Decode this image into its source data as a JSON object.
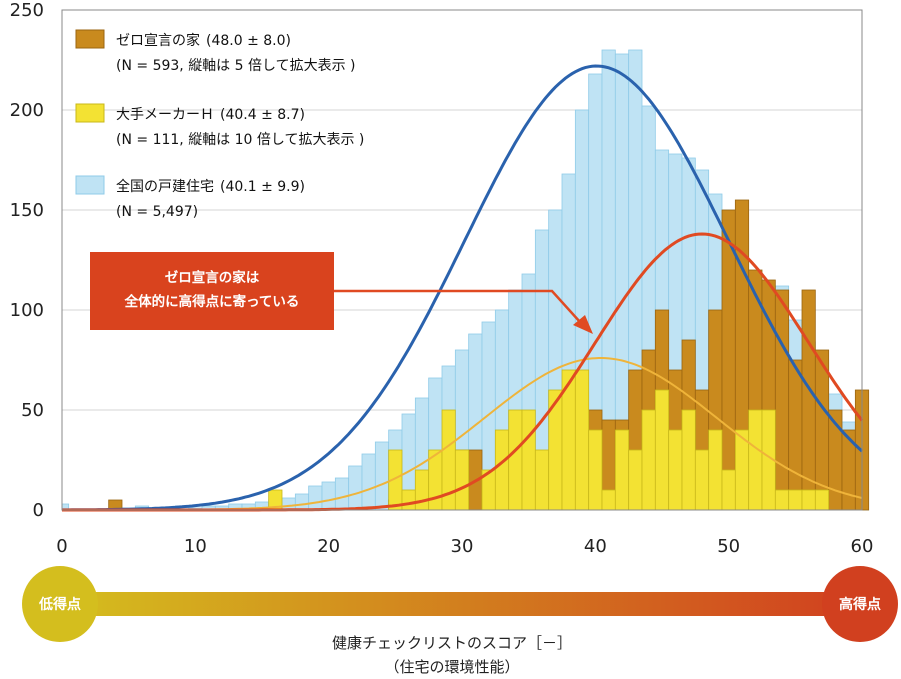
{
  "chart_data": {
    "type": "bar",
    "title": "",
    "xlabel": "健康チェックリストのスコア［－］",
    "xlabel_sub": "（住宅の環境性能）",
    "ylabel": "",
    "xlim": [
      0,
      60
    ],
    "ylim": [
      0,
      250
    ],
    "x_ticks": [
      "0",
      "10",
      "20",
      "30",
      "40",
      "50",
      "60"
    ],
    "y_ticks": [
      "0",
      "50",
      "100",
      "150",
      "200",
      "250"
    ],
    "grid": true,
    "legend_position": "top-left",
    "series": [
      {
        "name": "全国の戸建住宅",
        "stats": "(40.1 ± 9.9)",
        "note": "(N = 5,497)",
        "color": "#bfe3f4",
        "edge": "#8fcbe8",
        "values": [
          3,
          0,
          0,
          0,
          1,
          1,
          2,
          1,
          1,
          2,
          1,
          2,
          2,
          3,
          3,
          4,
          5,
          6,
          8,
          12,
          14,
          16,
          22,
          28,
          34,
          40,
          48,
          56,
          66,
          72,
          80,
          88,
          94,
          100,
          110,
          118,
          140,
          150,
          168,
          200,
          218,
          230,
          228,
          230,
          202,
          180,
          178,
          176,
          170,
          158,
          150,
          138,
          108,
          103,
          112,
          95,
          84,
          75,
          58,
          44,
          10
        ],
        "fit": {
          "mean": 40.1,
          "sd": 9.9,
          "peak": 222,
          "color": "#2a62ad"
        }
      },
      {
        "name": "ゼロ宣言の家",
        "stats": "(48.0 ± 8.0)",
        "note": "(N = 593, 縦軸は 5 倍して拡大表示 )",
        "color": "#c98a1e",
        "edge": "#9b6510",
        "values": [
          0,
          0,
          0,
          0,
          5,
          0,
          0,
          0,
          0,
          0,
          0,
          0,
          0,
          0,
          0,
          0,
          0,
          0,
          0,
          0,
          0,
          0,
          0,
          0,
          0,
          5,
          5,
          5,
          5,
          30,
          30,
          30,
          0,
          0,
          5,
          10,
          10,
          30,
          40,
          45,
          50,
          45,
          45,
          70,
          80,
          100,
          70,
          85,
          60,
          100,
          150,
          155,
          120,
          115,
          110,
          75,
          110,
          80,
          50,
          40,
          60
        ],
        "fit": {
          "mean": 48.0,
          "sd": 8.0,
          "peak": 138,
          "color": "#e04a22"
        }
      },
      {
        "name": "大手メーカーＨ",
        "stats": "(40.4 ± 8.7)",
        "note": "(N = 111, 縦軸は 10 倍して拡大表示 )",
        "color": "#f3e233",
        "edge": "#c8b81a",
        "values": [
          0,
          0,
          0,
          0,
          0,
          0,
          0,
          0,
          0,
          0,
          0,
          0,
          0,
          0,
          0,
          0,
          10,
          0,
          0,
          0,
          0,
          0,
          0,
          0,
          0,
          30,
          10,
          20,
          30,
          50,
          30,
          0,
          20,
          40,
          50,
          50,
          30,
          60,
          70,
          70,
          40,
          10,
          40,
          30,
          50,
          60,
          40,
          50,
          30,
          40,
          20,
          40,
          50,
          50,
          10,
          10,
          10,
          10,
          0,
          0,
          0
        ],
        "fit": {
          "mean": 40.4,
          "sd": 8.7,
          "peak": 76,
          "color": "#efb43a"
        }
      }
    ],
    "annotation": {
      "text_line1": "ゼロ宣言の家は",
      "text_line2": "全体的に高得点に寄っている",
      "box_color": "#d9431e"
    },
    "gradient_bar": {
      "left_label": "低得点",
      "right_label": "高得点",
      "left_color": "#d4be1e",
      "right_color": "#d1401f"
    }
  }
}
